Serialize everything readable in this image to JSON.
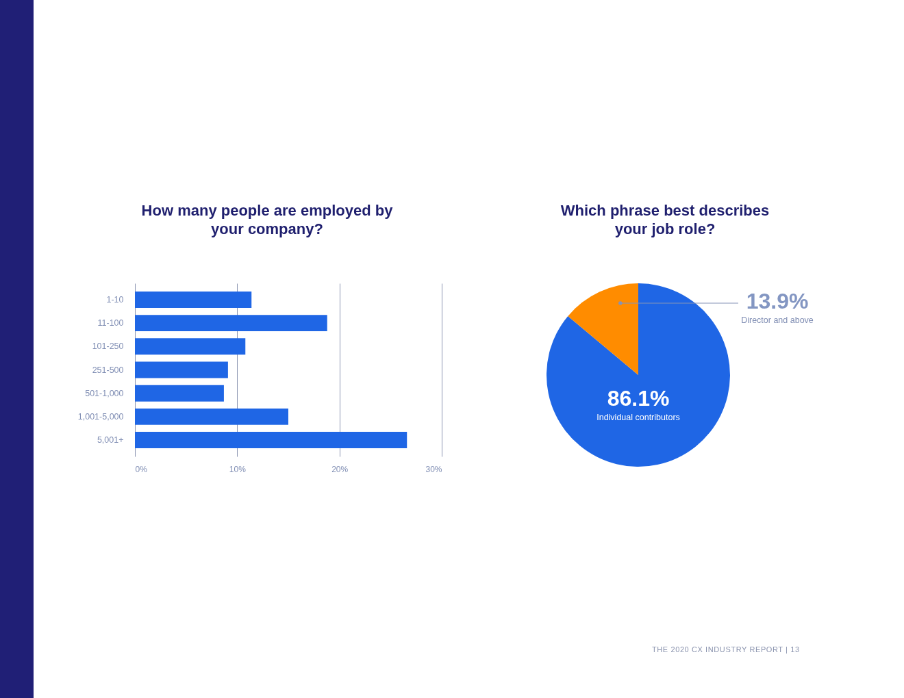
{
  "chart_data": [
    {
      "type": "bar",
      "orientation": "horizontal",
      "title": "How many people are employed by your company?",
      "categories": [
        "1-10",
        "11-100",
        "101-250",
        "251-500",
        "501-1,000",
        "1,001-5,000",
        "5,001+"
      ],
      "values": [
        11.4,
        18.8,
        10.8,
        9.1,
        8.7,
        15.0,
        26.6
      ],
      "color": "#1f66e5",
      "xlim": [
        0,
        30
      ],
      "xticks": [
        {
          "value": 0,
          "label": "0%"
        },
        {
          "value": 10,
          "label": "10%"
        },
        {
          "value": 20,
          "label": "20%"
        },
        {
          "value": 30,
          "label": "30%"
        }
      ],
      "grid": "x"
    },
    {
      "type": "pie",
      "title": "Which phrase best describes your job role?",
      "categories": [
        "Individual contributors",
        "Director and above"
      ],
      "values": [
        86.1,
        13.9
      ],
      "colors": [
        "#1f66e5",
        "#ff8c00"
      ],
      "value_labels": [
        "86.1%",
        "13.9%"
      ],
      "annotations": [
        "THE 2020 CX INDUSTRY REPORT | 13"
      ]
    }
  ]
}
